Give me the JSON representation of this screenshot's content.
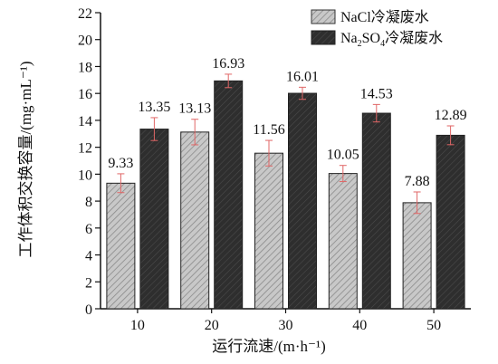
{
  "chart_data": {
    "type": "bar",
    "xlabel": "运行流速/(m·h⁻¹)",
    "ylabel": "工作体积交换容量/(mg·mL⁻¹)",
    "categories": [
      "10",
      "20",
      "30",
      "40",
      "50"
    ],
    "ylim": [
      0,
      22
    ],
    "y_ticks": [
      "0",
      "2",
      "4",
      "6",
      "8",
      "10",
      "12",
      "14",
      "16",
      "18",
      "20",
      "22"
    ],
    "grid": false,
    "legend_position": "top-right",
    "series": [
      {
        "name": "NaCl冷凝废水",
        "legend_label": {
          "main": "NaCl冷凝废水"
        },
        "fill": "#c8c8c8",
        "pattern": "diagonal-hatch",
        "values": [
          9.33,
          13.13,
          11.56,
          10.05,
          7.88
        ],
        "value_labels": [
          "9.33",
          "13.13",
          "11.56",
          "10.05",
          "7.88"
        ],
        "errors": [
          0.7,
          0.95,
          0.95,
          0.6,
          0.8
        ]
      },
      {
        "name": "Na2SO4冷凝废水",
        "legend_label": {
          "pre": "Na",
          "sub1": "2",
          "mid": "SO",
          "sub2": "4",
          "post": "冷凝废水"
        },
        "fill": "#2e2e2e",
        "pattern": "diagonal-hatch-dark",
        "values": [
          13.35,
          16.93,
          16.01,
          14.53,
          12.89
        ],
        "value_labels": [
          "13.35",
          "16.93",
          "16.01",
          "14.53",
          "12.89"
        ],
        "errors": [
          0.85,
          0.5,
          0.45,
          0.65,
          0.7
        ]
      }
    ],
    "error_bar_color": "#e06666"
  }
}
